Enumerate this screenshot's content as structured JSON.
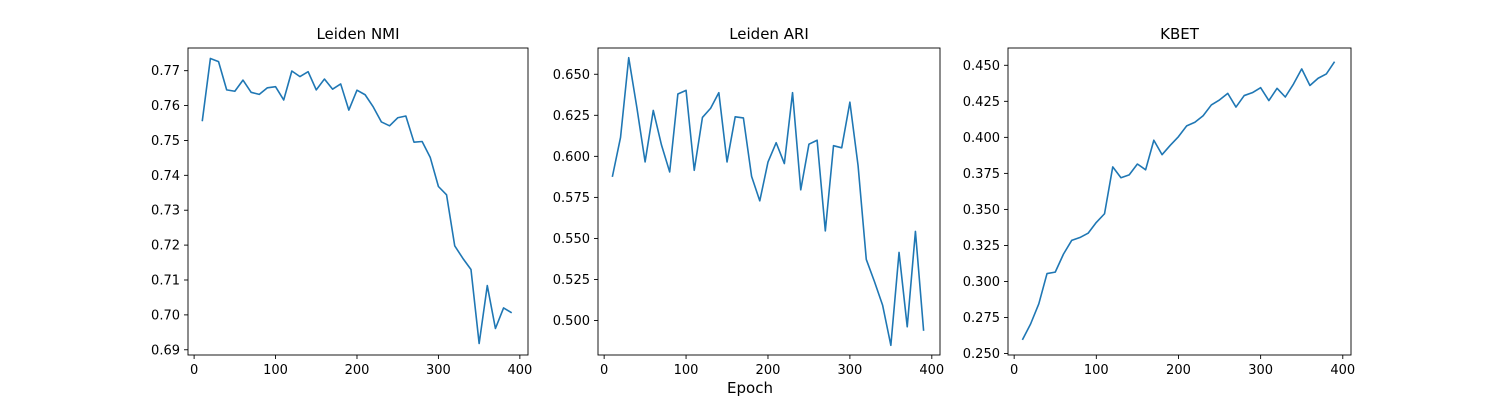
{
  "figure": {
    "xlabel": "Epoch"
  },
  "chart_data": [
    {
      "type": "line",
      "title": "Leiden NMI",
      "xlim": [
        -7.5,
        410
      ],
      "ylim": [
        0.6885,
        0.7765
      ],
      "xticks": [
        0,
        100,
        200,
        300,
        400
      ],
      "yticks": [
        0.69,
        0.7,
        0.71,
        0.72,
        0.73,
        0.74,
        0.75,
        0.76,
        0.77
      ],
      "ytick_labels": [
        "0.69",
        "0.70",
        "0.71",
        "0.72",
        "0.73",
        "0.74",
        "0.75",
        "0.76",
        "0.77"
      ],
      "series": [
        {
          "color": "#1f77b4",
          "x": [
            10,
            20,
            30,
            40,
            50,
            60,
            70,
            80,
            90,
            100,
            110,
            120,
            130,
            140,
            150,
            160,
            170,
            180,
            190,
            200,
            210,
            220,
            230,
            240,
            250,
            260,
            270,
            280,
            290,
            300,
            310,
            320,
            330,
            340,
            350,
            360,
            370,
            380,
            390
          ],
          "y": [
            0.7555,
            0.7735,
            0.7726,
            0.7645,
            0.7641,
            0.7673,
            0.7638,
            0.7632,
            0.7651,
            0.7654,
            0.7616,
            0.7699,
            0.7683,
            0.7697,
            0.7645,
            0.7676,
            0.7647,
            0.7662,
            0.7587,
            0.7644,
            0.7631,
            0.7596,
            0.7553,
            0.7542,
            0.7565,
            0.757,
            0.7495,
            0.7497,
            0.7451,
            0.7368,
            0.7344,
            0.7198,
            0.7162,
            0.713,
            0.6918,
            0.7084,
            0.6961,
            0.702,
            0.7006
          ]
        }
      ]
    },
    {
      "type": "line",
      "title": "Leiden ARI",
      "xlim": [
        -7.5,
        410
      ],
      "ylim": [
        0.479,
        0.666
      ],
      "xticks": [
        0,
        100,
        200,
        300,
        400
      ],
      "yticks": [
        0.5,
        0.525,
        0.55,
        0.575,
        0.6,
        0.625,
        0.65
      ],
      "ytick_labels": [
        "0.500",
        "0.525",
        "0.550",
        "0.575",
        "0.600",
        "0.625",
        "0.650"
      ],
      "series": [
        {
          "color": "#1f77b4",
          "x": [
            10,
            20,
            30,
            40,
            50,
            60,
            70,
            80,
            90,
            100,
            110,
            120,
            130,
            140,
            150,
            160,
            170,
            180,
            190,
            200,
            210,
            220,
            230,
            240,
            250,
            260,
            270,
            280,
            290,
            300,
            310,
            320,
            330,
            340,
            350,
            360,
            370,
            380,
            390
          ],
          "y": [
            0.5875,
            0.6115,
            0.6601,
            0.6295,
            0.5966,
            0.628,
            0.6069,
            0.5905,
            0.638,
            0.6402,
            0.5915,
            0.6237,
            0.6293,
            0.6388,
            0.5966,
            0.6241,
            0.6234,
            0.5878,
            0.5729,
            0.5965,
            0.6083,
            0.5956,
            0.6388,
            0.5796,
            0.6074,
            0.6098,
            0.5546,
            0.6065,
            0.6052,
            0.633,
            0.5943,
            0.5372,
            0.5237,
            0.5092,
            0.4849,
            0.5415,
            0.4962,
            0.5543,
            0.4937
          ]
        }
      ]
    },
    {
      "type": "line",
      "title": "KBET",
      "xlim": [
        -7.5,
        410
      ],
      "ylim": [
        0.249,
        0.462
      ],
      "xticks": [
        0,
        100,
        200,
        300,
        400
      ],
      "yticks": [
        0.25,
        0.275,
        0.3,
        0.325,
        0.35,
        0.375,
        0.4,
        0.425,
        0.45
      ],
      "ytick_labels": [
        "0.250",
        "0.275",
        "0.300",
        "0.325",
        "0.350",
        "0.375",
        "0.400",
        "0.425",
        "0.450"
      ],
      "series": [
        {
          "color": "#1f77b4",
          "x": [
            10,
            20,
            30,
            40,
            50,
            60,
            70,
            80,
            90,
            100,
            110,
            120,
            130,
            140,
            150,
            160,
            170,
            180,
            190,
            200,
            210,
            220,
            230,
            240,
            250,
            260,
            270,
            280,
            290,
            300,
            310,
            320,
            330,
            340,
            350,
            360,
            370,
            380,
            390
          ],
          "y": [
            0.2595,
            0.2705,
            0.2845,
            0.3055,
            0.3065,
            0.319,
            0.3285,
            0.3305,
            0.3335,
            0.341,
            0.347,
            0.3795,
            0.372,
            0.374,
            0.3815,
            0.3775,
            0.398,
            0.388,
            0.3945,
            0.4005,
            0.408,
            0.4105,
            0.415,
            0.4225,
            0.426,
            0.4305,
            0.421,
            0.429,
            0.431,
            0.4345,
            0.4255,
            0.434,
            0.428,
            0.437,
            0.4475,
            0.436,
            0.441,
            0.444,
            0.4525
          ]
        }
      ]
    }
  ]
}
